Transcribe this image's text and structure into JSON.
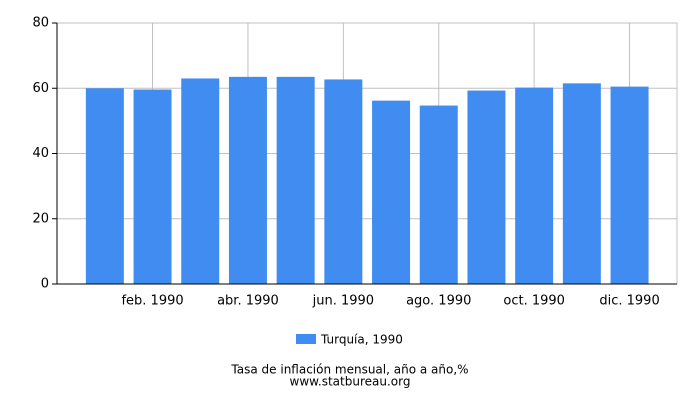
{
  "chart_data": {
    "type": "bar",
    "title": "Tasa de inflación mensual, año a año,%",
    "source": "www.statbureau.org",
    "categories": [
      null,
      "feb. 1990",
      null,
      "abr. 1990",
      null,
      "jun. 1990",
      null,
      "ago. 1990",
      null,
      "oct. 1990",
      null,
      "dic. 1990"
    ],
    "series": [
      {
        "name": "Turquía, 1990",
        "color": "#418cf0",
        "values": [
          60,
          59.6,
          63,
          63.5,
          63.5,
          62.7,
          56.2,
          54.7,
          59.3,
          60.2,
          61.5,
          60.5
        ]
      }
    ],
    "ylim": [
      0,
      80
    ],
    "yticks": [
      0,
      20,
      40,
      60,
      80
    ],
    "grid": true
  }
}
